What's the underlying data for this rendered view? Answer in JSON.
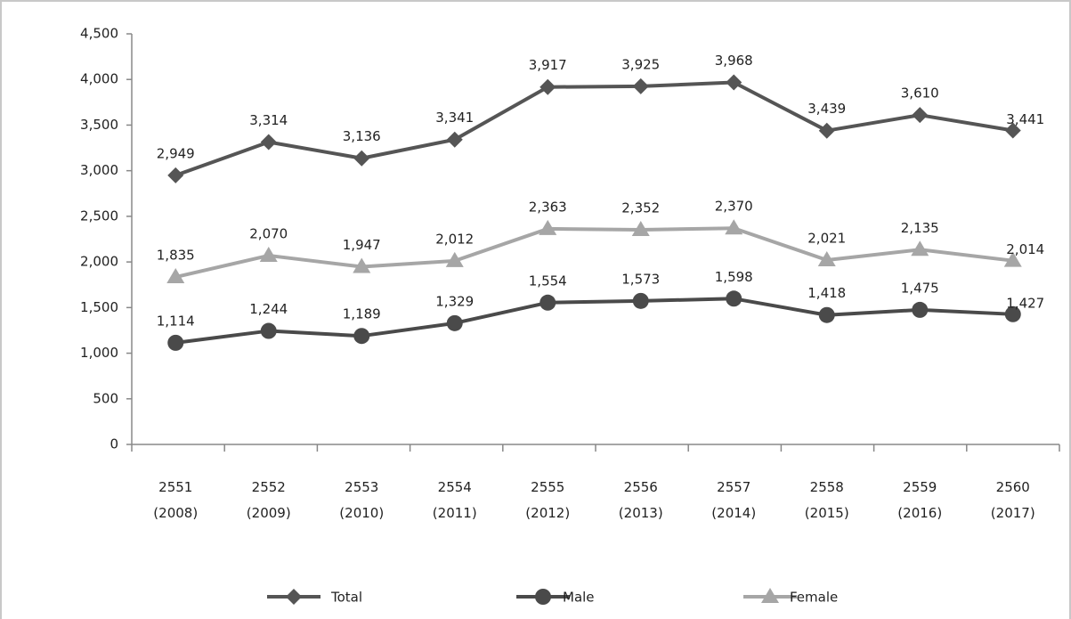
{
  "chart_data": {
    "type": "line",
    "categories": [
      "2551 (2008)",
      "2552 (2009)",
      "2553 (2010)",
      "2554 (2011)",
      "2555 (2012)",
      "2556 (2013)",
      "2557 (2014)",
      "2558 (2015)",
      "2559 (2016)",
      "2560 (2017)"
    ],
    "series": [
      {
        "name": "Total",
        "color": "#555555",
        "marker": "diamond",
        "values": [
          2949,
          3314,
          3136,
          3341,
          3917,
          3925,
          3968,
          3439,
          3610,
          3441
        ],
        "value_labels": [
          "2,949",
          "3,314",
          "3,136",
          "3,341",
          "3,917",
          "3,925",
          "3,968",
          "3,439",
          "3,610",
          "3,441"
        ]
      },
      {
        "name": "Male",
        "color": "#4a4a4a",
        "marker": "circle",
        "values": [
          1114,
          1244,
          1189,
          1329,
          1554,
          1573,
          1598,
          1418,
          1475,
          1427
        ],
        "value_labels": [
          "1,114",
          "1,244",
          "1,189",
          "1,329",
          "1,554",
          "1,573",
          "1,598",
          "1,418",
          "1,475",
          "1,427"
        ]
      },
      {
        "name": "Female",
        "color": "#a6a6a6",
        "marker": "triangle",
        "values": [
          1835,
          2070,
          1947,
          2012,
          2363,
          2352,
          2370,
          2021,
          2135,
          2014
        ],
        "value_labels": [
          "1,835",
          "2,070",
          "1,947",
          "2,012",
          "2,363",
          "2,352",
          "2,370",
          "2,021",
          "2,135",
          "2,014"
        ]
      }
    ],
    "ylim": [
      0,
      4500
    ],
    "yticks": [
      0,
      500,
      {
        "value": 1000,
        "label": "1,000"
      },
      {
        "value": 1500,
        "label": "1,500"
      },
      {
        "value": 2000,
        "label": "2,000"
      },
      {
        "value": 2500,
        "label": "2,500"
      },
      {
        "value": 3000,
        "label": "3,000"
      },
      {
        "value": 3500,
        "label": "3,500"
      },
      {
        "value": 4000,
        "label": "4,000"
      },
      {
        "value": 4500,
        "label": "4,500"
      }
    ],
    "grid": false,
    "legend": "bottom"
  }
}
